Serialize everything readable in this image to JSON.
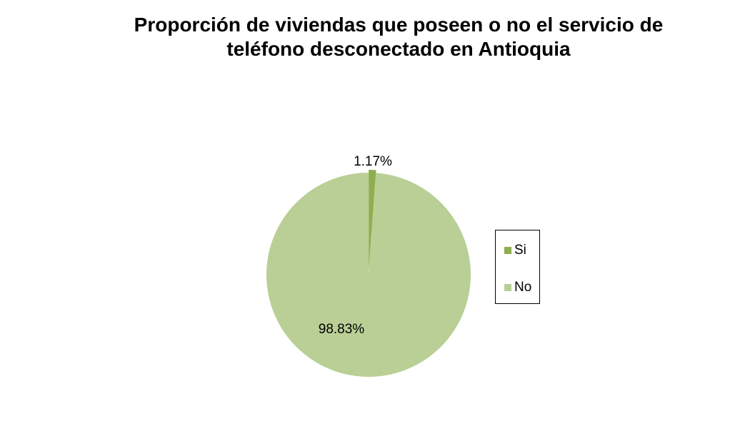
{
  "chart_data": {
    "type": "pie",
    "title": "Proporción de viviendas que poseen o no el servicio de teléfono desconectado en Antioquia",
    "title_lines": [
      "Proporción de viviendas que poseen o no el servicio de",
      "teléfono desconectado en Antioquia"
    ],
    "categories": [
      "Si",
      "No"
    ],
    "values": [
      1.17,
      98.83
    ],
    "data_labels": [
      "1.17%",
      "98.83%"
    ],
    "colors": [
      "#8FAE4E",
      "#B9CF96"
    ],
    "legend_position": "right"
  },
  "legend": {
    "items": [
      {
        "label": "Si",
        "color": "#8FAE4E"
      },
      {
        "label": "No",
        "color": "#B9CF96"
      }
    ]
  }
}
